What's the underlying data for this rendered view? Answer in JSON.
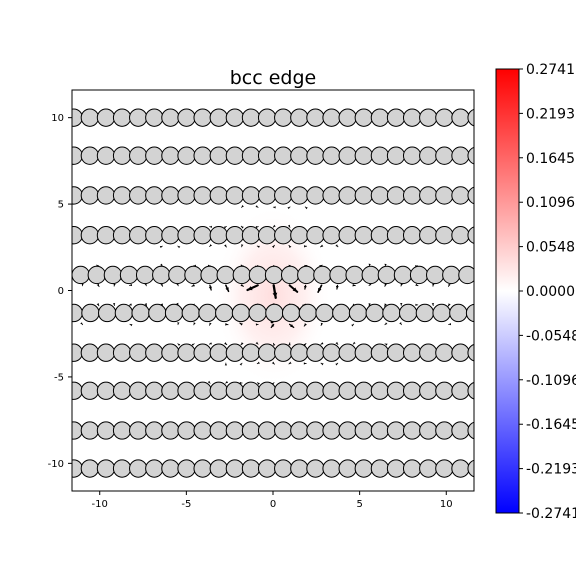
{
  "chart_data": {
    "type": "heatmap",
    "title": "bcc edge",
    "xlabel": "",
    "ylabel": "",
    "xlim": [
      -11.6,
      11.6
    ],
    "ylim": [
      -11.6,
      11.6
    ],
    "xticks": [
      -10,
      -5,
      0,
      5,
      10
    ],
    "yticks": [
      -10,
      -5,
      0,
      5,
      10
    ],
    "grid": false,
    "legend": "none",
    "colormap": "bwr",
    "colorbar": {
      "vmin": -0.2741,
      "vmax": 0.2741,
      "ticks": [
        0.2741,
        0.2193,
        0.1645,
        0.1096,
        0.0548,
        0.0,
        -0.0548,
        -0.1096,
        -0.1645,
        -0.2193,
        -0.2741
      ],
      "tick_labels": [
        "0.2741",
        "0.2193",
        "0.1645",
        "0.1096",
        "0.0548",
        "0.0000",
        "-0.0548",
        "-0.1096",
        "-0.1645",
        "-0.2193",
        "-0.2741"
      ]
    },
    "field_peak": {
      "x": 0.0,
      "y": -0.3,
      "value": 0.07
    },
    "atoms": {
      "radius": 0.5,
      "face_color": "#d3d3d3",
      "edge_color": "#000000",
      "rows": [
        {
          "y": 10.0,
          "x_start": -11.5,
          "spacing": 0.93,
          "count": 26
        },
        {
          "y": 7.8,
          "x_start": -11.5,
          "spacing": 0.93,
          "count": 26
        },
        {
          "y": 5.5,
          "x_start": -11.5,
          "spacing": 0.93,
          "count": 26
        },
        {
          "y": 3.2,
          "x_start": -11.5,
          "spacing": 0.93,
          "count": 26
        },
        {
          "y": 0.9,
          "x_start": -11.1,
          "spacing": 0.93,
          "count": 25
        },
        {
          "y": -1.3,
          "x_start": -11.5,
          "spacing": 0.965,
          "count": 25
        },
        {
          "y": -3.6,
          "x_start": -11.5,
          "spacing": 0.93,
          "count": 26
        },
        {
          "y": -5.8,
          "x_start": -11.5,
          "spacing": 0.93,
          "count": 26
        },
        {
          "y": -8.1,
          "x_start": -11.5,
          "spacing": 0.93,
          "count": 26
        },
        {
          "y": -10.3,
          "x_start": -11.5,
          "spacing": 0.93,
          "count": 26
        }
      ]
    },
    "displacement_arrows": {
      "color": "#000000",
      "core_center": {
        "x": 0.0,
        "y": -0.3
      }
    }
  }
}
